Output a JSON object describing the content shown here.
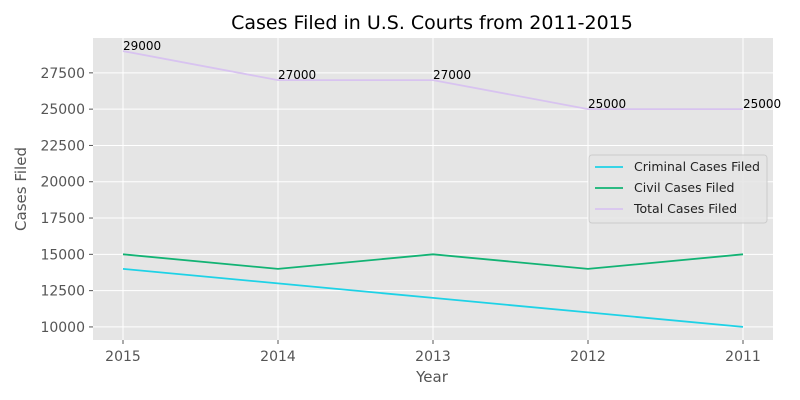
{
  "chart_data": {
    "type": "line",
    "title": "Cases Filed in U.S. Courts from 2011-2015",
    "xlabel": "Year",
    "ylabel": "Cases Filed",
    "categories": [
      "2015",
      "2014",
      "2013",
      "2012",
      "2011"
    ],
    "ylim": [
      9100,
      29900
    ],
    "yticks": [
      "10000",
      "12500",
      "15000",
      "17500",
      "20000",
      "22500",
      "25000",
      "27500"
    ],
    "grid": true,
    "legend_position": "center-right",
    "series": [
      {
        "name": "Criminal Cases Filed",
        "values": [
          14000,
          13000,
          12000,
          11000,
          10000
        ],
        "color": "#1ed2e6"
      },
      {
        "name": "Civil Cases Filed",
        "values": [
          15000,
          14000,
          15000,
          14000,
          15000
        ],
        "color": "#12b374"
      },
      {
        "name": "Total Cases Filed",
        "values": [
          29000,
          27000,
          27000,
          25000,
          25000
        ],
        "color": "#d8c3f0",
        "data_labels": [
          "29000",
          "27000",
          "27000",
          "25000",
          "25000"
        ]
      }
    ]
  }
}
